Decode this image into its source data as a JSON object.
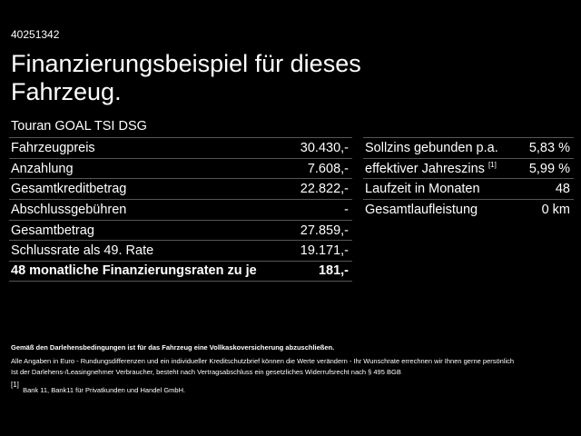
{
  "header": {
    "id": "40251342",
    "title": "Finanzierungsbeispiel für dieses Fahrzeug.",
    "model": "Touran GOAL TSI DSG"
  },
  "left_table": {
    "rows": [
      [
        "Fahrzeugpreis",
        "30.430,-"
      ],
      [
        "Anzahlung",
        "7.608,-"
      ],
      [
        "Gesamtkreditbetrag",
        "22.822,-"
      ],
      [
        "Abschlussgebühren",
        "-"
      ],
      [
        "Gesamtbetrag",
        "27.859,-"
      ],
      [
        "Schlussrate als 49. Rate",
        "19.171,-"
      ],
      [
        "48 monatliche Finanzierungsraten zu je",
        "181,-"
      ]
    ]
  },
  "right_table": {
    "rows": [
      {
        "label": "Sollzins gebunden p.a.",
        "value": "5,83 %"
      },
      {
        "label": "effektiver Jahreszins",
        "note": "[1]",
        "value": "5,99 %"
      },
      {
        "label": "Laufzeit in Monaten",
        "value": "48"
      },
      {
        "label": "Gesamtlaufleistung",
        "value": "0 km"
      }
    ]
  },
  "footer": {
    "bold_note": "Gemäß den Darlehensbedingungen ist für das Fahrzeug eine Vollkaskoversicherung abzuschließen.",
    "lines": [
      "Alle Angaben in Euro - Rundungsdifferenzen und ein individueller Kreditschutzbrief können die Werte verändern - Ihr Wunschrate errechnen wir Ihnen gerne persönlich",
      "Ist der Darlehens-/Leasingnehmer Verbraucher, besteht nach Vertragsabschluss ein gesetzliches Widerrufsrecht nach § 495 BGB"
    ],
    "footnote": {
      "mark": "[1]",
      "text": "Bank 11, Bank11 für Privatkunden und Handel GmbH."
    }
  }
}
